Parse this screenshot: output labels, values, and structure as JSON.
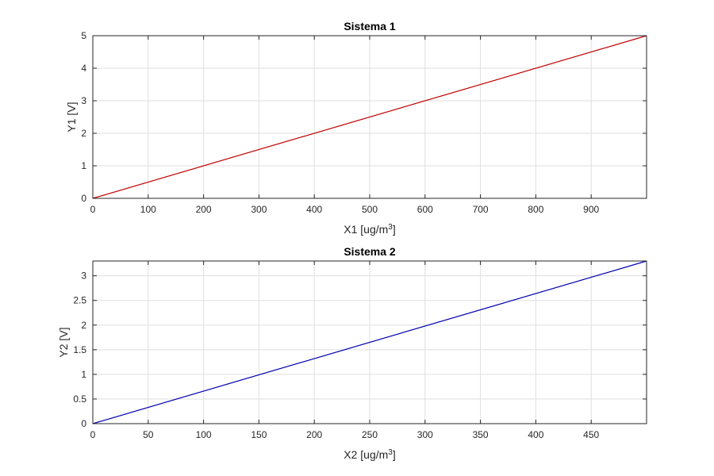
{
  "chart_data": [
    {
      "type": "line",
      "title": "Sistema 1",
      "xlabel": "X1 [ug/m",
      "xlabel_sup": "3",
      "xlabel_end": "]",
      "ylabel": "Y1 [V]",
      "xlim": [
        0,
        1000
      ],
      "ylim": [
        0,
        5
      ],
      "x_ticks": [
        0,
        100,
        200,
        300,
        400,
        500,
        600,
        700,
        800,
        900
      ],
      "x_tick_labels": [
        "0",
        "100",
        "200",
        "300",
        "400",
        "500",
        "600",
        "700",
        "800",
        "900"
      ],
      "y_ticks": [
        0,
        1,
        2,
        3,
        4,
        5
      ],
      "y_tick_labels": [
        "0",
        "1",
        "2",
        "3",
        "4",
        "5"
      ],
      "grid": true,
      "series": [
        {
          "x": [
            0,
            1000
          ],
          "y": [
            0,
            5
          ],
          "color": "#c00000"
        }
      ]
    },
    {
      "type": "line",
      "title": "Sistema 2",
      "xlabel": "X2 [ug/m",
      "xlabel_sup": "3",
      "xlabel_end": "]",
      "ylabel": "Y2 [V]",
      "xlim": [
        0,
        500
      ],
      "ylim": [
        0,
        3.3
      ],
      "x_ticks": [
        0,
        50,
        100,
        150,
        200,
        250,
        300,
        350,
        400,
        450
      ],
      "x_tick_labels": [
        "0",
        "50",
        "100",
        "150",
        "200",
        "250",
        "300",
        "350",
        "400",
        "450"
      ],
      "y_ticks": [
        0,
        0.5,
        1,
        1.5,
        2,
        2.5,
        3
      ],
      "y_tick_labels": [
        "0",
        "0.5",
        "1",
        "1.5",
        "2",
        "2.5",
        "3"
      ],
      "grid": true,
      "series": [
        {
          "x": [
            0,
            500
          ],
          "y": [
            0,
            3.3
          ],
          "color": "#0000b0"
        }
      ]
    }
  ]
}
